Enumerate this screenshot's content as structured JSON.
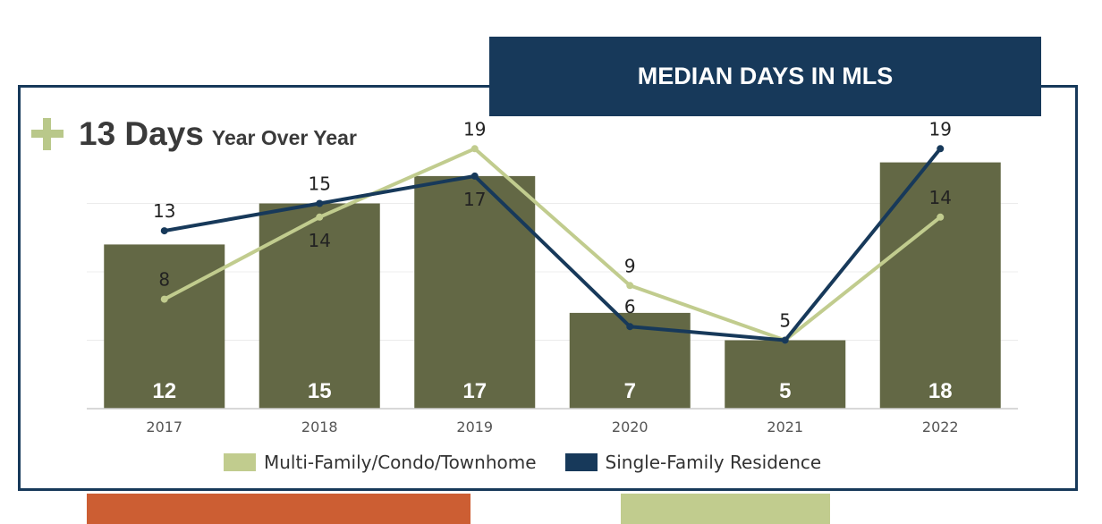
{
  "header": {
    "title": "MEDIAN DAYS IN MLS",
    "change_value": "13 Days",
    "change_label": "Year Over Year"
  },
  "colors": {
    "bar": "#636845",
    "multi_family": "#c1cc8e",
    "single_family": "#17395a",
    "banner": "#17395a",
    "plus": "#b9c88a",
    "deco_orange": "#cc5e33",
    "deco_green": "#c1cc8e"
  },
  "icons": {
    "change": "plus-icon"
  },
  "legend": {
    "multi_family": "Multi-Family/Condo/Townhome",
    "single_family": "Single-Family Residence"
  },
  "chart_data": {
    "type": "bar",
    "title": "MEDIAN DAYS IN MLS",
    "categories": [
      "2017",
      "2018",
      "2019",
      "2020",
      "2021",
      "2022"
    ],
    "ylim": [
      0,
      20
    ],
    "grid": true,
    "legend_position": "bottom",
    "series": [
      {
        "name": "",
        "type": "bar",
        "values": [
          12,
          15,
          17,
          7,
          5,
          18
        ]
      },
      {
        "name": "Multi-Family/Condo/Townhome",
        "type": "line",
        "values": [
          8,
          14,
          19,
          9,
          5,
          14
        ]
      },
      {
        "name": "Single-Family Residence",
        "type": "line",
        "values": [
          13,
          15,
          17,
          6,
          5,
          19
        ]
      }
    ]
  }
}
